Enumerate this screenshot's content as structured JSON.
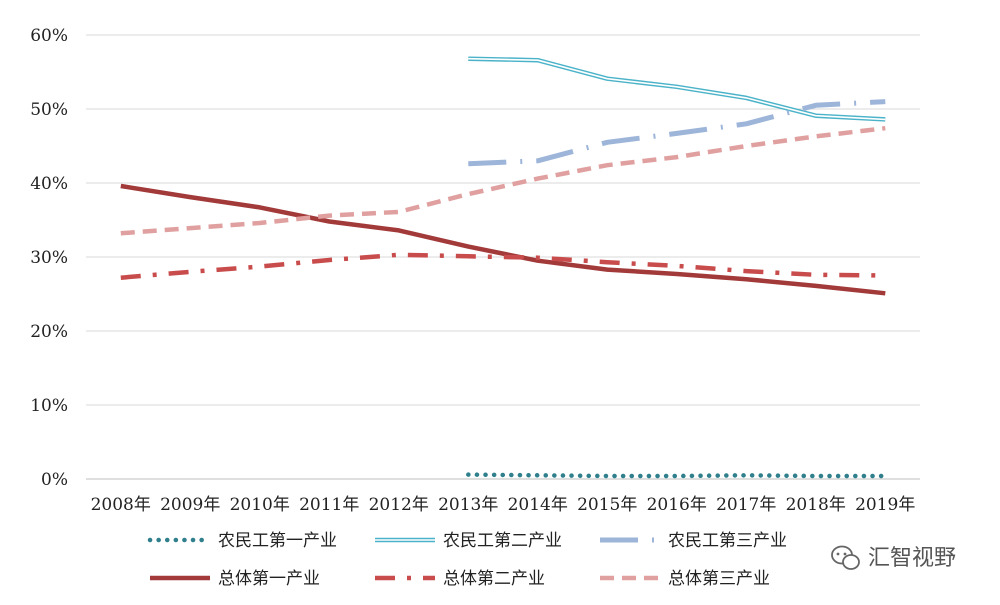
{
  "chart_data": {
    "type": "line",
    "categories": [
      "2008年",
      "2009年",
      "2010年",
      "2011年",
      "2012年",
      "2013年",
      "2014年",
      "2015年",
      "2016年",
      "2017年",
      "2018年",
      "2019年"
    ],
    "y_tick_labels": [
      "0%",
      "10%",
      "20%",
      "30%",
      "40%",
      "50%",
      "60%"
    ],
    "ylim": [
      0,
      60
    ],
    "y_unit": "%",
    "grid": "horizontal",
    "legend_position": "bottom",
    "series": [
      {
        "name": "农民工第一产业",
        "style": "dotted",
        "color": "#2f7f8c",
        "values": [
          null,
          null,
          null,
          null,
          null,
          0.6,
          0.5,
          0.4,
          0.4,
          0.5,
          0.4,
          0.4
        ]
      },
      {
        "name": "农民工第二产业",
        "style": "double",
        "color": "#4bb3c9",
        "values": [
          null,
          null,
          null,
          null,
          null,
          56.8,
          56.6,
          54.1,
          53.0,
          51.5,
          49.1,
          48.6
        ]
      },
      {
        "name": "农民工第三产业",
        "style": "dash-dot-long",
        "color": "#9db5d9",
        "values": [
          null,
          null,
          null,
          null,
          null,
          42.6,
          43.0,
          45.5,
          46.7,
          48.0,
          50.5,
          51.0
        ]
      },
      {
        "name": "总体第一产业",
        "style": "solid",
        "color": "#a33a3a",
        "values": [
          39.6,
          38.1,
          36.7,
          34.8,
          33.6,
          31.4,
          29.5,
          28.3,
          27.7,
          27.0,
          26.1,
          25.1
        ]
      },
      {
        "name": "总体第二产业",
        "style": "dash-dot",
        "color": "#c94c4c",
        "values": [
          27.2,
          28.0,
          28.7,
          29.6,
          30.3,
          30.1,
          29.9,
          29.3,
          28.8,
          28.1,
          27.6,
          27.5
        ]
      },
      {
        "name": "总体第三产业",
        "style": "dashed",
        "color": "#e0a0a0",
        "values": [
          33.2,
          33.9,
          34.6,
          35.6,
          36.1,
          38.5,
          40.6,
          42.4,
          43.5,
          45.0,
          46.3,
          47.4
        ]
      }
    ]
  },
  "watermark": {
    "text": "汇智视野",
    "icon": "wechat-icon"
  }
}
